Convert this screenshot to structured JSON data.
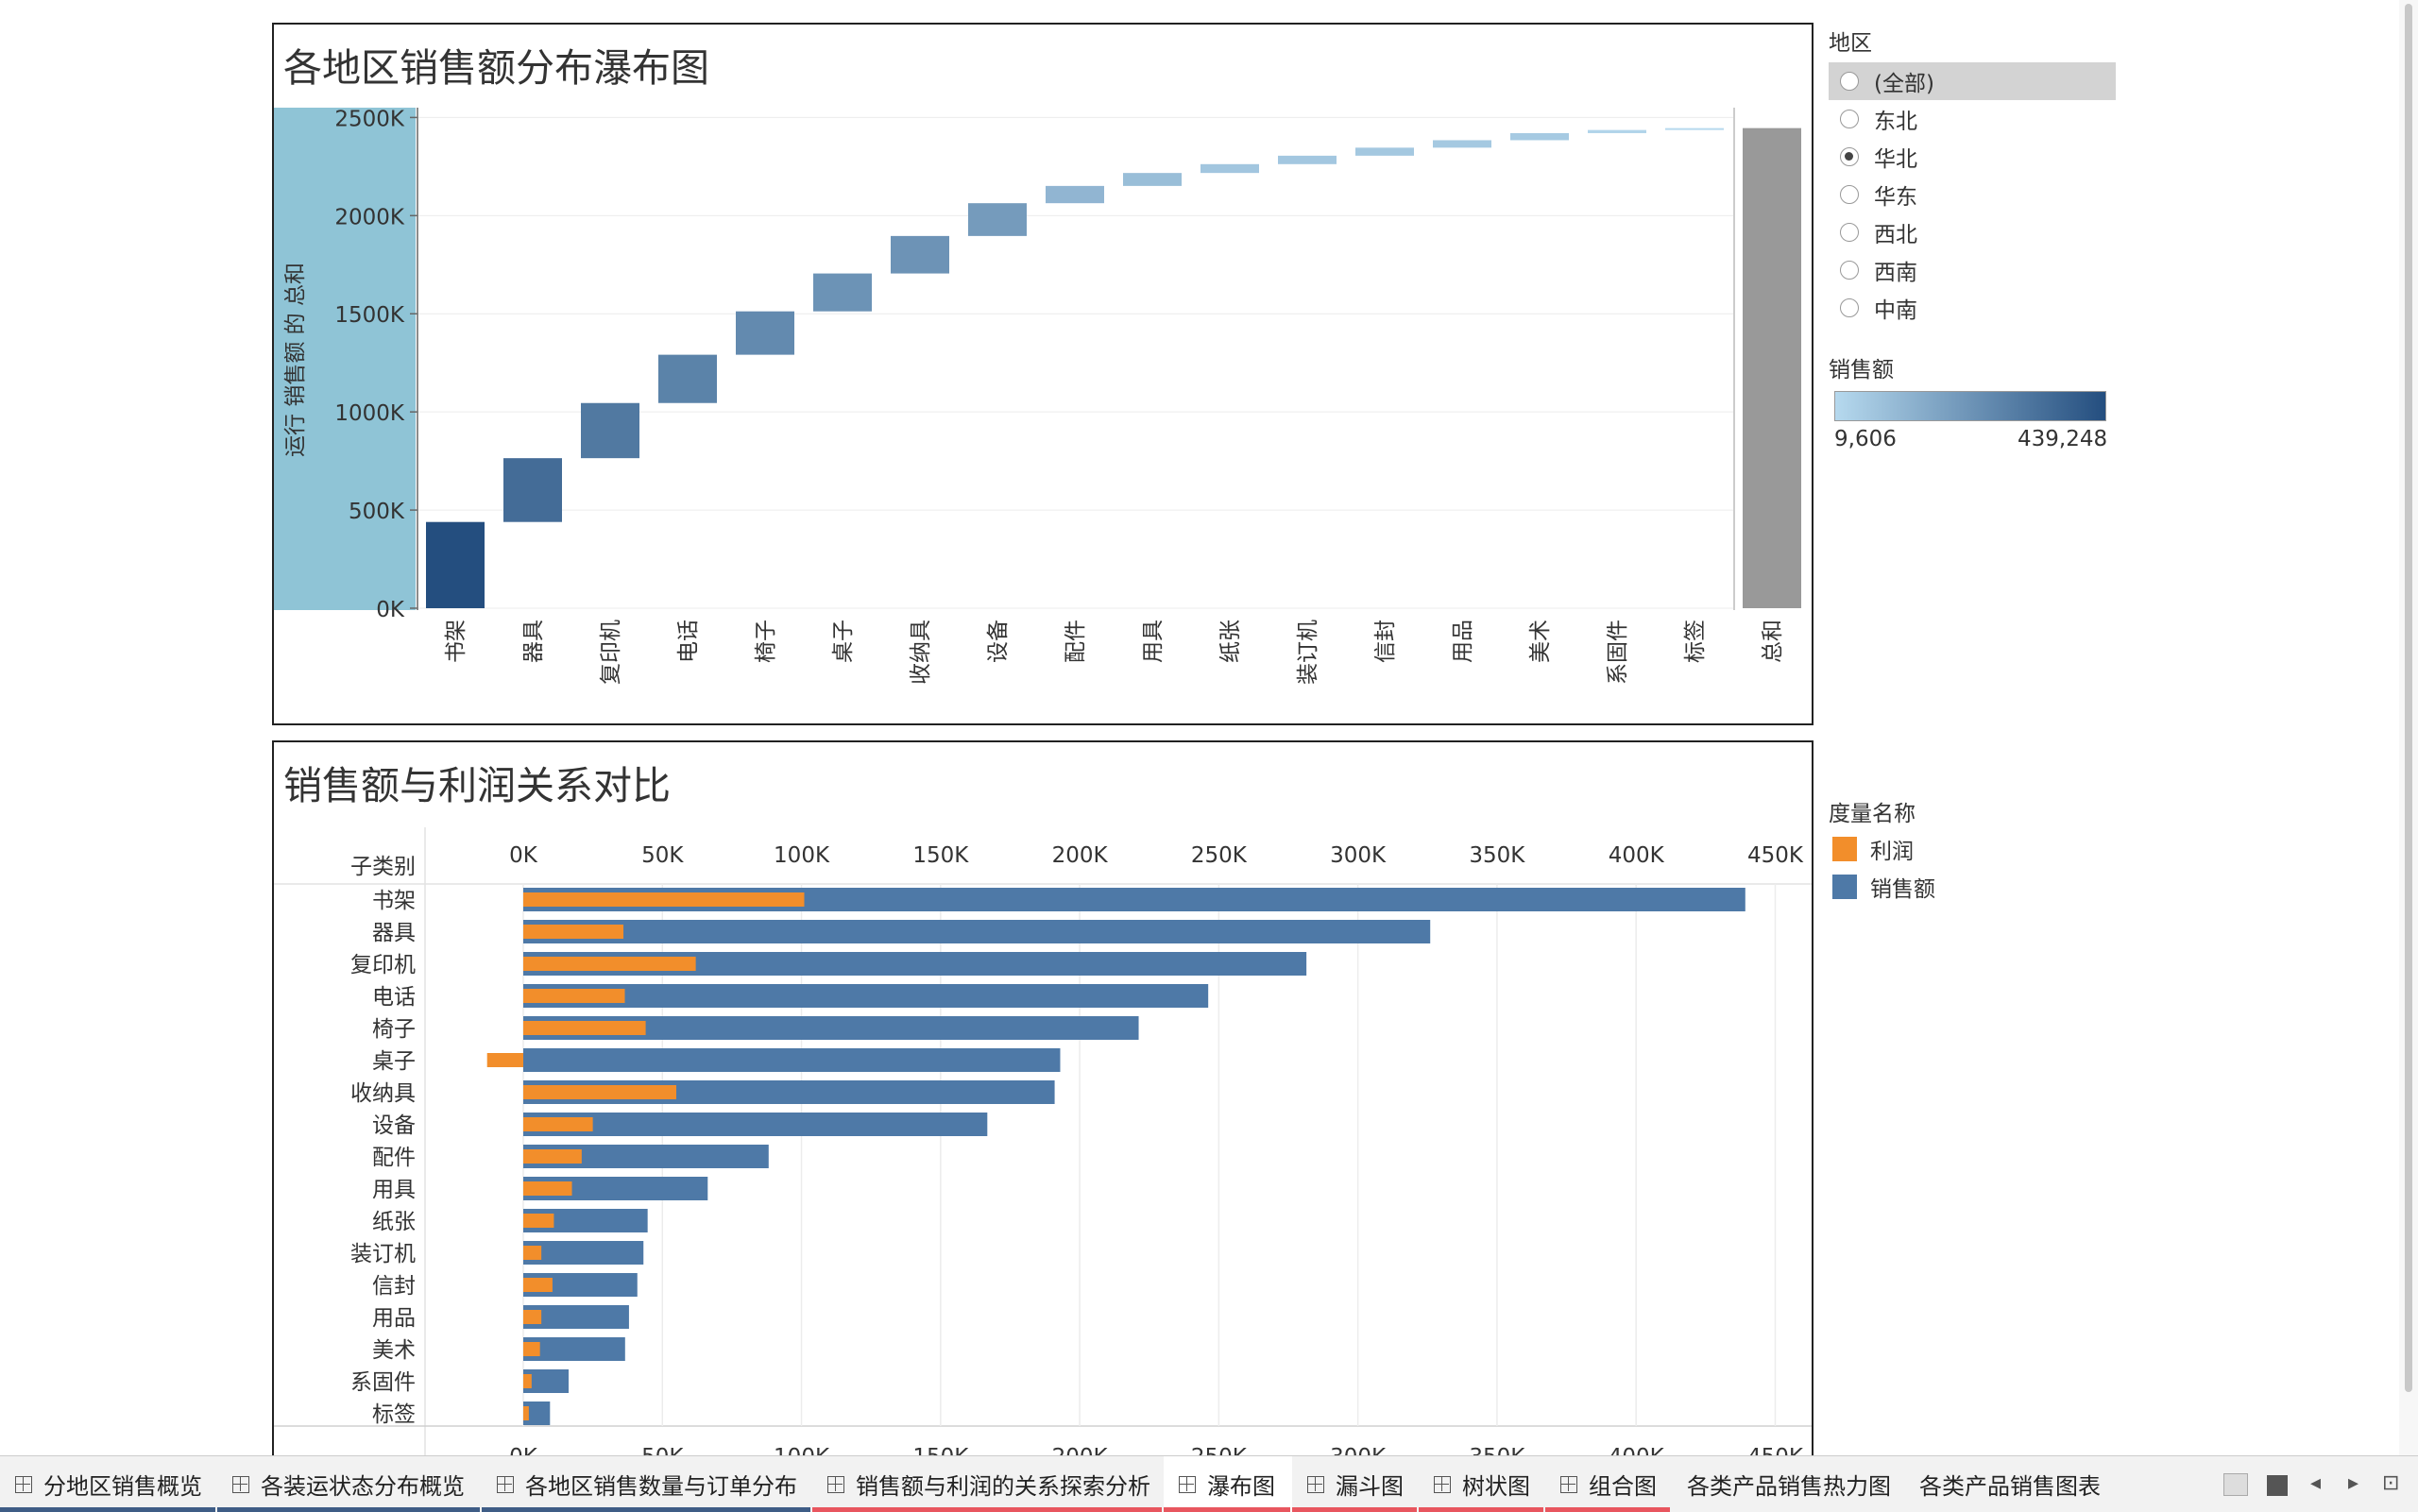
{
  "waterfall": {
    "title": "各地区销售额分布瀑布图",
    "ylabel": "运行 销售额 的 总和",
    "yticks": [
      "0K",
      "500K",
      "1000K",
      "1500K",
      "2000K",
      "2500K"
    ]
  },
  "bars": {
    "title": "销售额与利润关系对比",
    "row_header": "子类别",
    "xticks": [
      "0K",
      "50K",
      "100K",
      "150K",
      "200K",
      "250K",
      "300K",
      "350K",
      "400K",
      "450K"
    ]
  },
  "chart_data": [
    {
      "type": "bar",
      "subtype": "waterfall",
      "title": "各地区销售额分布瀑布图",
      "ylabel": "运行 销售额 的 总和",
      "ylim": [
        0,
        2550000
      ],
      "categories": [
        "书架",
        "器具",
        "复印机",
        "电话",
        "椅子",
        "桌子",
        "收纳具",
        "设备",
        "配件",
        "用具",
        "纸张",
        "装订机",
        "信封",
        "用品",
        "美术",
        "系固件",
        "标签",
        "总和"
      ],
      "values": [
        439248,
        325000,
        281000,
        246000,
        221000,
        193000,
        191000,
        167000,
        88000,
        66000,
        45000,
        43000,
        41000,
        38000,
        36000,
        16000,
        9606,
        2445854
      ],
      "total_label": "总和",
      "color_legend": {
        "title": "销售额",
        "min": "9,606",
        "max": "439,248",
        "min_color": "#b6d9ee",
        "max_color": "#244e7f"
      }
    },
    {
      "type": "bar",
      "orientation": "horizontal",
      "title": "销售额与利润关系对比",
      "row_header": "子类别",
      "xlim": [
        -20000,
        460000
      ],
      "categories": [
        "书架",
        "器具",
        "复印机",
        "电话",
        "椅子",
        "桌子",
        "收纳具",
        "设备",
        "配件",
        "用具",
        "纸张",
        "装订机",
        "信封",
        "用品",
        "美术",
        "系固件",
        "标签"
      ],
      "series": [
        {
          "name": "销售额",
          "color": "#4e79a7",
          "values": [
            439248,
            326000,
            281500,
            246200,
            221200,
            193000,
            191000,
            166800,
            88200,
            66300,
            44700,
            43200,
            41000,
            38000,
            36600,
            16300,
            9606
          ]
        },
        {
          "name": "利润",
          "color": "#f28e2b",
          "values": [
            101000,
            36000,
            62000,
            36500,
            44000,
            -13000,
            55000,
            25000,
            21000,
            17500,
            11000,
            6500,
            10500,
            6500,
            6000,
            3000,
            2000
          ]
        }
      ],
      "legend_title": "度量名称"
    }
  ],
  "filter": {
    "title": "地区",
    "options": [
      "(全部)",
      "东北",
      "华北",
      "华东",
      "西北",
      "西南",
      "中南"
    ],
    "selected": "华北",
    "highlighted": "(全部)"
  },
  "color_legend": {
    "title": "销售额",
    "min": "9,606",
    "max": "439,248"
  },
  "measure_legend": {
    "title": "度量名称",
    "items": [
      {
        "label": "利润",
        "color": "#f28e2b"
      },
      {
        "label": "销售额",
        "color": "#4e79a7"
      }
    ]
  },
  "tabs": [
    {
      "label": "分地区销售概览",
      "underline": "#3f5d86",
      "icon": true
    },
    {
      "label": "各装运状态分布概览",
      "underline": "#3f5d86",
      "icon": true
    },
    {
      "label": "各地区销售数量与订单分布",
      "underline": "#3f5d86",
      "icon": true
    },
    {
      "label": "销售额与利润的关系探索分析",
      "underline": "#e8565f",
      "icon": true
    },
    {
      "label": "瀑布图",
      "underline": "#e8565f",
      "icon": true,
      "active": true
    },
    {
      "label": "漏斗图",
      "underline": "#e8565f",
      "icon": true
    },
    {
      "label": "树状图",
      "underline": "#e8565f",
      "icon": true
    },
    {
      "label": "组合图",
      "underline": "#e8565f",
      "icon": true
    },
    {
      "label": "各类产品销售热力图",
      "underline": "",
      "icon": false
    },
    {
      "label": "各类产品销售图表",
      "underline": "",
      "icon": false
    }
  ]
}
